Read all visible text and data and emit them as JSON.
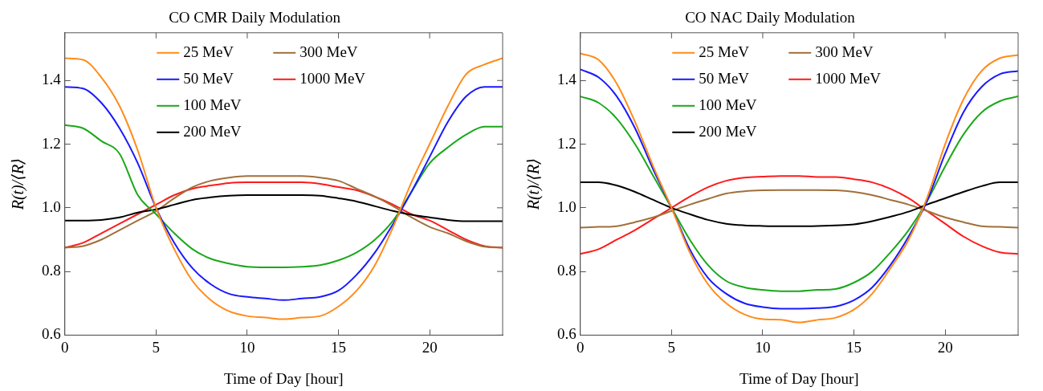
{
  "chart_data": [
    {
      "type": "line",
      "title": "CO CMR Daily Modulation",
      "xlabel": "Time of Day [hour]",
      "ylabel": "R(t)/⟨R⟩",
      "xlim": [
        0,
        24
      ],
      "xticks": [
        0,
        5,
        10,
        15,
        20
      ],
      "ylim": [
        0.6,
        1.55
      ],
      "yticks": [
        0.6,
        0.8,
        {
          "value": 1,
          "label": "1.0"
        },
        1.2,
        1.4
      ],
      "legend": "top",
      "grid": false,
      "marker": "none",
      "line_style": "solid",
      "x": [
        0,
        1,
        2,
        3,
        4,
        5,
        6,
        7,
        8,
        9,
        10,
        11,
        12,
        13,
        14,
        15,
        16,
        17,
        18,
        19,
        20,
        21,
        22,
        23,
        24
      ],
      "series": [
        {
          "name": "25 MeV",
          "color": "#ff8c1a",
          "values": [
            1.47,
            1.465,
            1.41,
            1.32,
            1.18,
            1.0,
            0.87,
            0.77,
            0.71,
            0.675,
            0.66,
            0.655,
            0.65,
            0.655,
            0.66,
            0.69,
            0.74,
            0.82,
            0.94,
            1.08,
            1.2,
            1.32,
            1.42,
            1.45,
            1.47
          ]
        },
        {
          "name": "50 MeV",
          "color": "#1a1aff",
          "values": [
            1.38,
            1.375,
            1.33,
            1.25,
            1.14,
            1.0,
            0.89,
            0.81,
            0.76,
            0.73,
            0.72,
            0.715,
            0.71,
            0.715,
            0.72,
            0.74,
            0.79,
            0.86,
            0.95,
            1.05,
            1.16,
            1.27,
            1.35,
            1.38,
            1.38
          ]
        },
        {
          "name": "100 MeV",
          "color": "#1aa81a",
          "values": [
            1.26,
            1.25,
            1.21,
            1.17,
            1.04,
            0.98,
            0.92,
            0.87,
            0.84,
            0.825,
            0.815,
            0.813,
            0.813,
            0.815,
            0.82,
            0.835,
            0.86,
            0.9,
            0.96,
            1.05,
            1.14,
            1.19,
            1.23,
            1.255,
            1.255
          ]
        },
        {
          "name": "200 MeV",
          "color": "#000000",
          "values": [
            0.96,
            0.96,
            0.962,
            0.97,
            0.985,
            0.995,
            1.01,
            1.025,
            1.033,
            1.038,
            1.04,
            1.04,
            1.04,
            1.04,
            1.038,
            1.03,
            1.02,
            1.005,
            0.99,
            0.978,
            0.97,
            0.962,
            0.958,
            0.958,
            0.958
          ]
        },
        {
          "name": "300 MeV",
          "color": "#a0703a",
          "values": [
            0.875,
            0.88,
            0.9,
            0.93,
            0.96,
            0.99,
            1.03,
            1.065,
            1.085,
            1.095,
            1.1,
            1.1,
            1.1,
            1.1,
            1.095,
            1.085,
            1.06,
            1.035,
            1.005,
            0.97,
            0.94,
            0.92,
            0.895,
            0.878,
            0.875
          ]
        },
        {
          "name": "1000 MeV",
          "color": "#ff1a1a",
          "values": [
            0.875,
            0.89,
            0.92,
            0.95,
            0.98,
            1.01,
            1.04,
            1.06,
            1.07,
            1.078,
            1.08,
            1.08,
            1.08,
            1.08,
            1.075,
            1.065,
            1.055,
            1.035,
            1.01,
            0.98,
            0.96,
            0.93,
            0.9,
            0.88,
            0.875
          ]
        }
      ]
    },
    {
      "type": "line",
      "title": "CO NAC Daily Modulation",
      "xlabel": "Time of Day [hour]",
      "ylabel": "R(t)/⟨R⟩",
      "xlim": [
        0,
        24
      ],
      "xticks": [
        0,
        5,
        10,
        15,
        20
      ],
      "ylim": [
        0.6,
        1.55
      ],
      "yticks": [
        0.6,
        0.8,
        {
          "value": 1,
          "label": "1.0"
        },
        1.2,
        1.4
      ],
      "legend": "top",
      "grid": false,
      "marker": "none",
      "line_style": "solid",
      "x": [
        0,
        1,
        2,
        3,
        4,
        5,
        6,
        7,
        8,
        9,
        10,
        11,
        12,
        13,
        14,
        15,
        16,
        17,
        18,
        19,
        20,
        21,
        22,
        23,
        24
      ],
      "series": [
        {
          "name": "25 MeV",
          "color": "#ff8c1a",
          "values": [
            1.485,
            1.465,
            1.39,
            1.27,
            1.13,
            1.0,
            0.86,
            0.76,
            0.7,
            0.665,
            0.65,
            0.648,
            0.64,
            0.648,
            0.655,
            0.68,
            0.73,
            0.81,
            0.9,
            1.03,
            1.2,
            1.34,
            1.43,
            1.47,
            1.48
          ]
        },
        {
          "name": "50 MeV",
          "color": "#1a1aff",
          "values": [
            1.435,
            1.41,
            1.35,
            1.25,
            1.12,
            1.0,
            0.87,
            0.78,
            0.73,
            0.7,
            0.688,
            0.683,
            0.683,
            0.685,
            0.69,
            0.71,
            0.75,
            0.82,
            0.91,
            1.02,
            1.17,
            1.3,
            1.38,
            1.42,
            1.43
          ]
        },
        {
          "name": "100 MeV",
          "color": "#1aa81a",
          "values": [
            1.35,
            1.33,
            1.28,
            1.2,
            1.1,
            1.0,
            0.9,
            0.82,
            0.77,
            0.75,
            0.742,
            0.738,
            0.738,
            0.742,
            0.745,
            0.765,
            0.8,
            0.86,
            0.93,
            1.02,
            1.13,
            1.23,
            1.3,
            1.335,
            1.35
          ]
        },
        {
          "name": "200 MeV",
          "color": "#000000",
          "values": [
            1.08,
            1.08,
            1.07,
            1.05,
            1.025,
            1.0,
            0.98,
            0.962,
            0.95,
            0.945,
            0.943,
            0.942,
            0.942,
            0.943,
            0.945,
            0.948,
            0.958,
            0.972,
            0.988,
            1.01,
            1.03,
            1.05,
            1.068,
            1.08,
            1.08
          ]
        },
        {
          "name": "300 MeV",
          "color": "#a0703a",
          "values": [
            0.938,
            0.94,
            0.942,
            0.955,
            0.97,
            0.99,
            1.01,
            1.028,
            1.045,
            1.052,
            1.055,
            1.056,
            1.056,
            1.056,
            1.055,
            1.05,
            1.04,
            1.025,
            1.01,
            0.99,
            0.97,
            0.955,
            0.942,
            0.94,
            0.938
          ]
        },
        {
          "name": "1000 MeV",
          "color": "#ff1a1a",
          "values": [
            0.855,
            0.87,
            0.9,
            0.93,
            0.965,
            1.0,
            1.035,
            1.065,
            1.085,
            1.095,
            1.098,
            1.1,
            1.1,
            1.097,
            1.097,
            1.09,
            1.08,
            1.06,
            1.03,
            0.99,
            0.95,
            0.91,
            0.88,
            0.86,
            0.855
          ]
        }
      ]
    }
  ]
}
